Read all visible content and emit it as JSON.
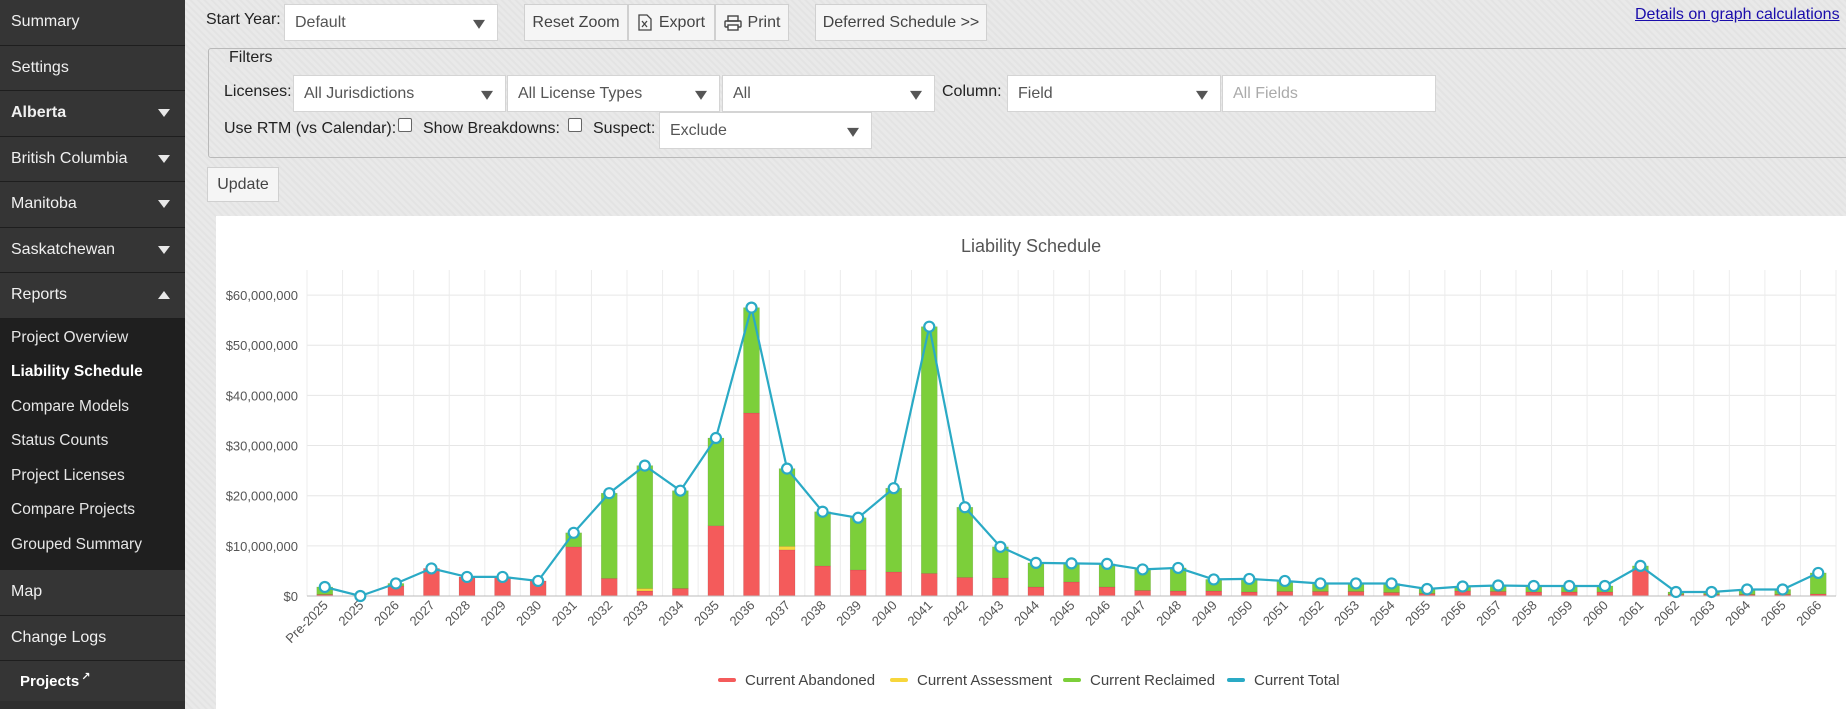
{
  "sidebar": {
    "items": [
      {
        "label": "Summary",
        "bold": false,
        "caret": ""
      },
      {
        "label": "Settings",
        "bold": false,
        "caret": ""
      },
      {
        "label": "Alberta",
        "bold": true,
        "caret": "down"
      },
      {
        "label": "British Columbia",
        "bold": false,
        "caret": "down"
      },
      {
        "label": "Manitoba",
        "bold": false,
        "caret": "down"
      },
      {
        "label": "Saskatchewan",
        "bold": false,
        "caret": "down"
      },
      {
        "label": "Reports",
        "bold": false,
        "caret": "up"
      }
    ],
    "reports_sub": [
      {
        "label": "Project Overview",
        "active": false
      },
      {
        "label": "Liability Schedule",
        "active": true
      },
      {
        "label": "Compare Models",
        "active": false
      },
      {
        "label": "Status Counts",
        "active": false
      },
      {
        "label": "Project Licenses",
        "active": false
      },
      {
        "label": "Compare Projects",
        "active": false
      },
      {
        "label": "Grouped Summary",
        "active": false
      }
    ],
    "bottom_items": [
      {
        "label": "Map"
      },
      {
        "label": "Change Logs"
      }
    ],
    "projects_label": "Projects",
    "external_icon": "↗"
  },
  "toolbar": {
    "start_year_label": "Start Year:",
    "start_year_value": "Default",
    "reset_zoom": "Reset Zoom",
    "export": "Export",
    "print": "Print",
    "deferred": "Deferred Schedule >>",
    "details_link": "Details on graph calculations"
  },
  "filters": {
    "legend": "Filters",
    "licenses_label": "Licenses:",
    "jurisdictions": "All Jurisdictions",
    "license_types": "All License Types",
    "all": "All",
    "column_label": "Column:",
    "column_value": "Field",
    "fields_placeholder": "All Fields",
    "rtm_label": "Use RTM (vs Calendar):",
    "breakdowns_label": "Show Breakdowns:",
    "suspect_label": "Suspect:",
    "suspect_value": "Exclude",
    "update": "Update"
  },
  "colors": {
    "abandoned": "#f45b5b",
    "assessment": "#f7d63c",
    "reclaimed": "#7ccf3a",
    "total": "#2aaac5"
  },
  "chart_data": {
    "type": "bar",
    "title": "Liability Schedule",
    "xlabel": "",
    "ylabel": "",
    "ylim": [
      0,
      65000000
    ],
    "y_ticks": [
      "$0",
      "$10,000,000",
      "$20,000,000",
      "$30,000,000",
      "$40,000,000",
      "$50,000,000",
      "$60,000,000"
    ],
    "categories": [
      "Pre-2025",
      "2025",
      "2026",
      "2027",
      "2028",
      "2029",
      "2030",
      "2031",
      "2032",
      "2033",
      "2034",
      "2035",
      "2036",
      "2037",
      "2038",
      "2039",
      "2040",
      "2041",
      "2042",
      "2043",
      "2044",
      "2045",
      "2046",
      "2047",
      "2048",
      "2049",
      "2050",
      "2051",
      "2052",
      "2053",
      "2054",
      "2055",
      "2056",
      "2057",
      "2058",
      "2059",
      "2060",
      "2061",
      "2062",
      "2063",
      "2064",
      "2065",
      "2066"
    ],
    "series": [
      {
        "name": "Current Abandoned",
        "kind": "bar",
        "values": [
          300000,
          0,
          2000000,
          5500000,
          3800000,
          3800000,
          3000000,
          9800000,
          3500000,
          1000000,
          1500000,
          14000000,
          36500000,
          9200000,
          6000000,
          5200000,
          4800000,
          4500000,
          3700000,
          3600000,
          1800000,
          2800000,
          1800000,
          1100000,
          1000000,
          1000000,
          800000,
          900000,
          900000,
          900000,
          700000,
          500000,
          1000000,
          900000,
          800000,
          800000,
          800000,
          5200000,
          300000,
          300000,
          300000,
          300000,
          400000
        ]
      },
      {
        "name": "Current Assessment",
        "kind": "bar",
        "values": [
          0,
          0,
          0,
          0,
          0,
          0,
          0,
          0,
          0,
          500000,
          0,
          0,
          0,
          700000,
          0,
          0,
          0,
          0,
          0,
          0,
          0,
          0,
          0,
          0,
          0,
          0,
          0,
          0,
          0,
          0,
          0,
          0,
          0,
          0,
          0,
          0,
          0,
          0,
          0,
          0,
          0,
          0,
          0
        ]
      },
      {
        "name": "Current Reclaimed",
        "kind": "bar",
        "values": [
          1500000,
          0,
          500000,
          0,
          0,
          0,
          0,
          2800000,
          17000000,
          24500000,
          19500000,
          17500000,
          21000000,
          15500000,
          10800000,
          10400000,
          16700000,
          49200000,
          14000000,
          6200000,
          4800000,
          3700000,
          4600000,
          4200000,
          4600000,
          2300000,
          2600000,
          2100000,
          1600000,
          1600000,
          1800000,
          900000,
          900000,
          1200000,
          1200000,
          1200000,
          1200000,
          800000,
          500000,
          500000,
          1000000,
          1000000,
          4200000
        ]
      },
      {
        "name": "Current Total",
        "kind": "line",
        "values": [
          1800000,
          0,
          2500000,
          5500000,
          3800000,
          3800000,
          3000000,
          12600000,
          20500000,
          26000000,
          21000000,
          31500000,
          57500000,
          25400000,
          16800000,
          15600000,
          21500000,
          53700000,
          17700000,
          9800000,
          6600000,
          6500000,
          6400000,
          5300000,
          5600000,
          3300000,
          3400000,
          3000000,
          2500000,
          2500000,
          2500000,
          1400000,
          1900000,
          2100000,
          2000000,
          2000000,
          2000000,
          6000000,
          800000,
          800000,
          1300000,
          1300000,
          4600000
        ]
      }
    ],
    "legend_position": "bottom-center",
    "grid": true
  }
}
